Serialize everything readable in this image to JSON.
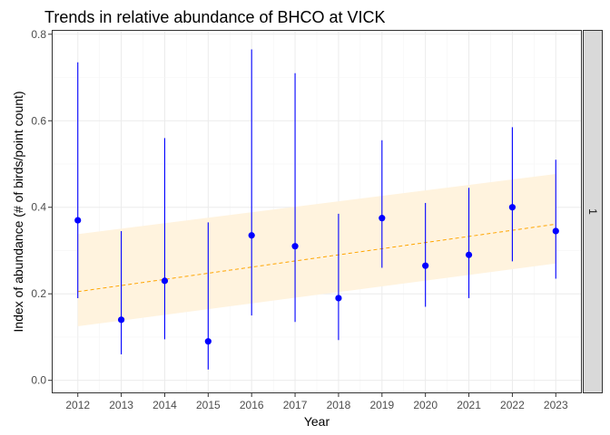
{
  "chart_data": {
    "type": "scatter",
    "title": "Trends in relative abundance of BHCO at VICK",
    "xlabel": "Year",
    "ylabel": "Index of abundance (# of birds/point count)",
    "x": [
      2012,
      2013,
      2014,
      2015,
      2016,
      2017,
      2018,
      2019,
      2020,
      2021,
      2022,
      2023
    ],
    "xticks": [
      "2012",
      "2013",
      "2014",
      "2015",
      "2016",
      "2017",
      "2018",
      "2019",
      "2020",
      "2021",
      "2022",
      "2023"
    ],
    "xlim": [
      2011.4,
      2023.6
    ],
    "ylim": [
      -0.03,
      0.81
    ],
    "yticks": [
      "0.0",
      "0.2",
      "0.4",
      "0.6",
      "0.8"
    ],
    "ytick_values": [
      0.0,
      0.2,
      0.4,
      0.6,
      0.8
    ],
    "grid": true,
    "facet_label": "1",
    "series": [
      {
        "values": [
          0.37,
          0.14,
          0.23,
          0.09,
          0.335,
          0.31,
          0.19,
          0.375,
          0.265,
          0.29,
          0.4,
          0.345
        ],
        "lower": [
          0.19,
          0.06,
          0.095,
          0.025,
          0.15,
          0.135,
          0.093,
          0.26,
          0.17,
          0.19,
          0.275,
          0.235
        ],
        "upper": [
          0.735,
          0.345,
          0.56,
          0.365,
          0.765,
          0.71,
          0.385,
          0.555,
          0.41,
          0.445,
          0.585,
          0.51
        ],
        "color": "#0000ff"
      }
    ],
    "trend": {
      "color": "#ffa500",
      "band_color": "#fff3de",
      "fit": [
        0.205,
        0.361
      ],
      "band_lower": [
        0.125,
        0.27
      ],
      "band_upper": [
        0.338,
        0.477
      ]
    }
  }
}
